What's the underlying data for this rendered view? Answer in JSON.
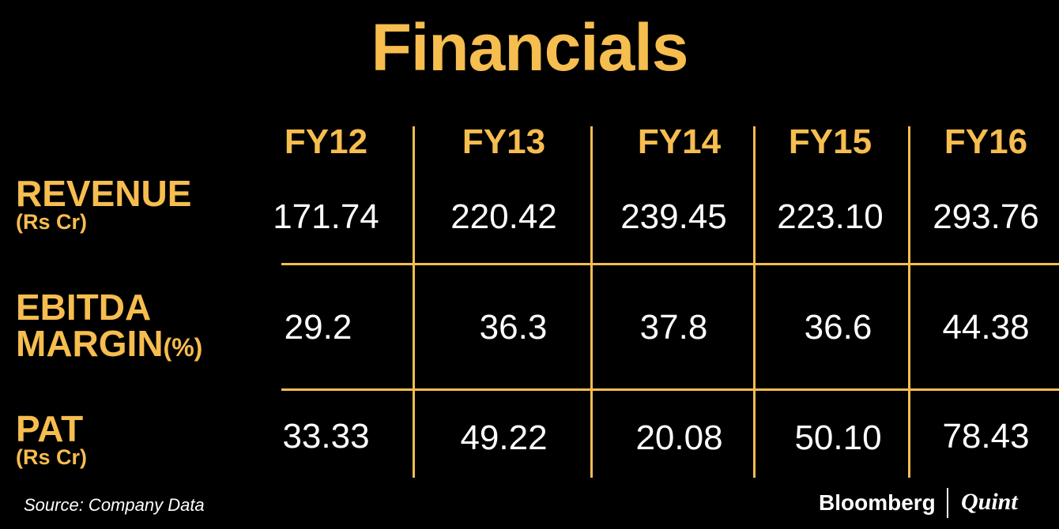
{
  "title": "Financials",
  "columns": [
    "FY12",
    "FY13",
    "FY14",
    "FY15",
    "FY16"
  ],
  "rows": [
    {
      "label": "REVENUE",
      "label2": "",
      "unit": "(Rs Cr)",
      "values": [
        "171.74",
        "220.42",
        "239.45",
        "223.10",
        "293.76"
      ]
    },
    {
      "label": "EBITDA",
      "label2": "MARGIN",
      "unit": "(%)",
      "values": [
        "29.2",
        "36.3",
        "37.8",
        "36.6",
        "44.38"
      ]
    },
    {
      "label": "PAT",
      "label2": "",
      "unit": "(Rs Cr)",
      "values": [
        "33.33",
        "49.22",
        "20.08",
        "50.10",
        "78.43"
      ]
    }
  ],
  "source": "Source: Company Data",
  "brand": {
    "primary": "Bloomberg",
    "secondary": "Quint"
  },
  "colors": {
    "accent": "#f6bd4f",
    "background": "#000000",
    "text": "#ffffff"
  },
  "chart_data": {
    "type": "table",
    "title": "Financials",
    "categories": [
      "FY12",
      "FY13",
      "FY14",
      "FY15",
      "FY16"
    ],
    "series": [
      {
        "name": "REVENUE (Rs Cr)",
        "values": [
          171.74,
          220.42,
          239.45,
          223.1,
          293.76
        ]
      },
      {
        "name": "EBITDA MARGIN (%)",
        "values": [
          29.2,
          36.3,
          37.8,
          36.6,
          44.38
        ]
      },
      {
        "name": "PAT (Rs Cr)",
        "values": [
          33.33,
          49.22,
          20.08,
          50.1,
          78.43
        ]
      }
    ]
  }
}
